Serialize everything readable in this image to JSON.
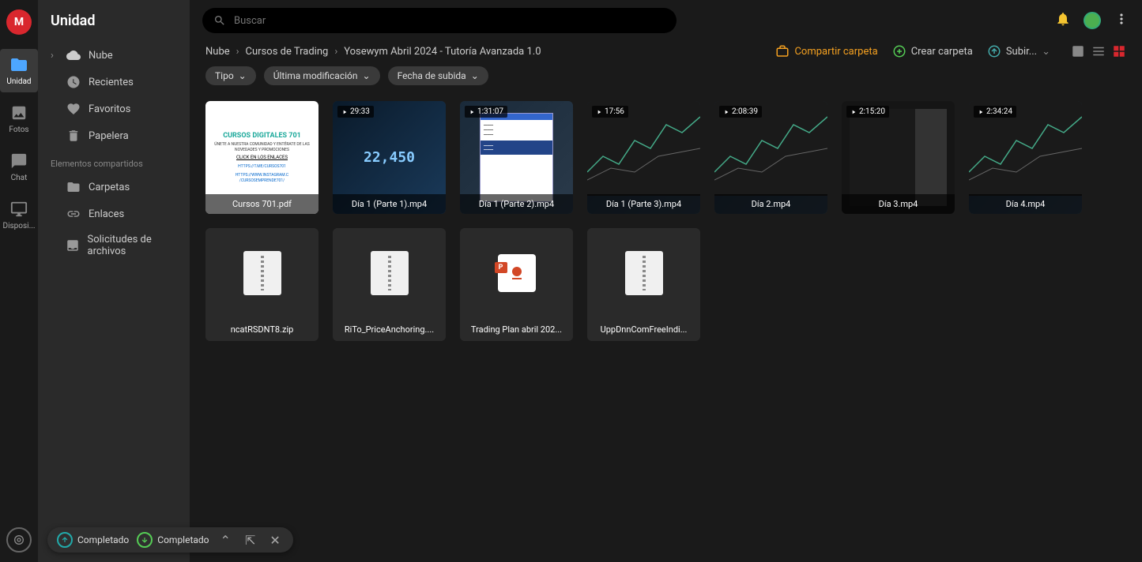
{
  "rail": {
    "logo": "M",
    "items": [
      {
        "label": "Unidad",
        "icon": "folder",
        "active": true
      },
      {
        "label": "Fotos",
        "icon": "image"
      },
      {
        "label": "Chat",
        "icon": "chat"
      },
      {
        "label": "Disposi...",
        "icon": "device"
      }
    ]
  },
  "sidebar": {
    "title": "Unidad",
    "items": [
      {
        "label": "Nube",
        "icon": "cloud",
        "expandable": true
      },
      {
        "label": "Recientes",
        "icon": "clock"
      },
      {
        "label": "Favoritos",
        "icon": "heart"
      },
      {
        "label": "Papelera",
        "icon": "trash"
      }
    ],
    "section_label": "Elementos compartidos",
    "shared_items": [
      {
        "label": "Carpetas",
        "icon": "folders"
      },
      {
        "label": "Enlaces",
        "icon": "link"
      },
      {
        "label": "Solicitudes de archivos",
        "icon": "inbox"
      }
    ]
  },
  "search": {
    "placeholder": "Buscar"
  },
  "breadcrumb": {
    "items": [
      "Nube",
      "Cursos de Trading",
      "Yosewym Abril 2024 - Tutoría Avanzada 1.0"
    ],
    "actions": {
      "share": "Compartir carpeta",
      "create": "Crear carpeta",
      "upload": "Subir..."
    }
  },
  "filters": [
    {
      "label": "Tipo"
    },
    {
      "label": "Última modificación"
    },
    {
      "label": "Fecha de subida"
    }
  ],
  "files": [
    {
      "name": "Cursos 701.pdf",
      "type": "pdf",
      "pdf_title": "CURSOS DIGITALES 701",
      "pdf_sub": "ÚNETE A NUESTRA COMUNIDAD Y ENTÉRATE DE LAS NOVEDADES Y PROMOCIONES",
      "pdf_l1": "CLICK EN LOS ENLACES",
      "pdf_l2": "HTTPS://T.ME/CURSOS701",
      "pdf_l3": "HTTPS://WWW.INSTAGRAM.C /CURSOSEMPRENDE701/"
    },
    {
      "name": "Día 1 (Parte 1).mp4",
      "type": "video",
      "duration": "29:33",
      "thumb": "numbers"
    },
    {
      "name": "Día 1 (Parte 2).mp4",
      "type": "video",
      "duration": "1:31:07",
      "thumb": "doc"
    },
    {
      "name": "Día 1 (Parte 3).mp4",
      "type": "video",
      "duration": "17:56",
      "thumb": "chart"
    },
    {
      "name": "Día 2.mp4",
      "type": "video",
      "duration": "2:08:39",
      "thumb": "chart"
    },
    {
      "name": "Día 3.mp4",
      "type": "video",
      "duration": "2:15:20",
      "thumb": "dark"
    },
    {
      "name": "Día 4.mp4",
      "type": "video",
      "duration": "2:34:24",
      "thumb": "chart"
    },
    {
      "name": "ncatRSDNT8.zip",
      "type": "zip"
    },
    {
      "name": "RiTo_PriceAnchoring....",
      "type": "zip"
    },
    {
      "name": "Trading Plan abril 202...",
      "type": "ppt"
    },
    {
      "name": "UppDnnComFreeIndi...",
      "type": "zip"
    }
  ],
  "bottombar": {
    "item1": "Completado",
    "item2": "Completado"
  },
  "colors": {
    "bg": "#1a1a1a",
    "panel": "#2a2a2a",
    "accent": "#d9272e",
    "share": "#f4a020",
    "teal": "#1aa89a"
  }
}
